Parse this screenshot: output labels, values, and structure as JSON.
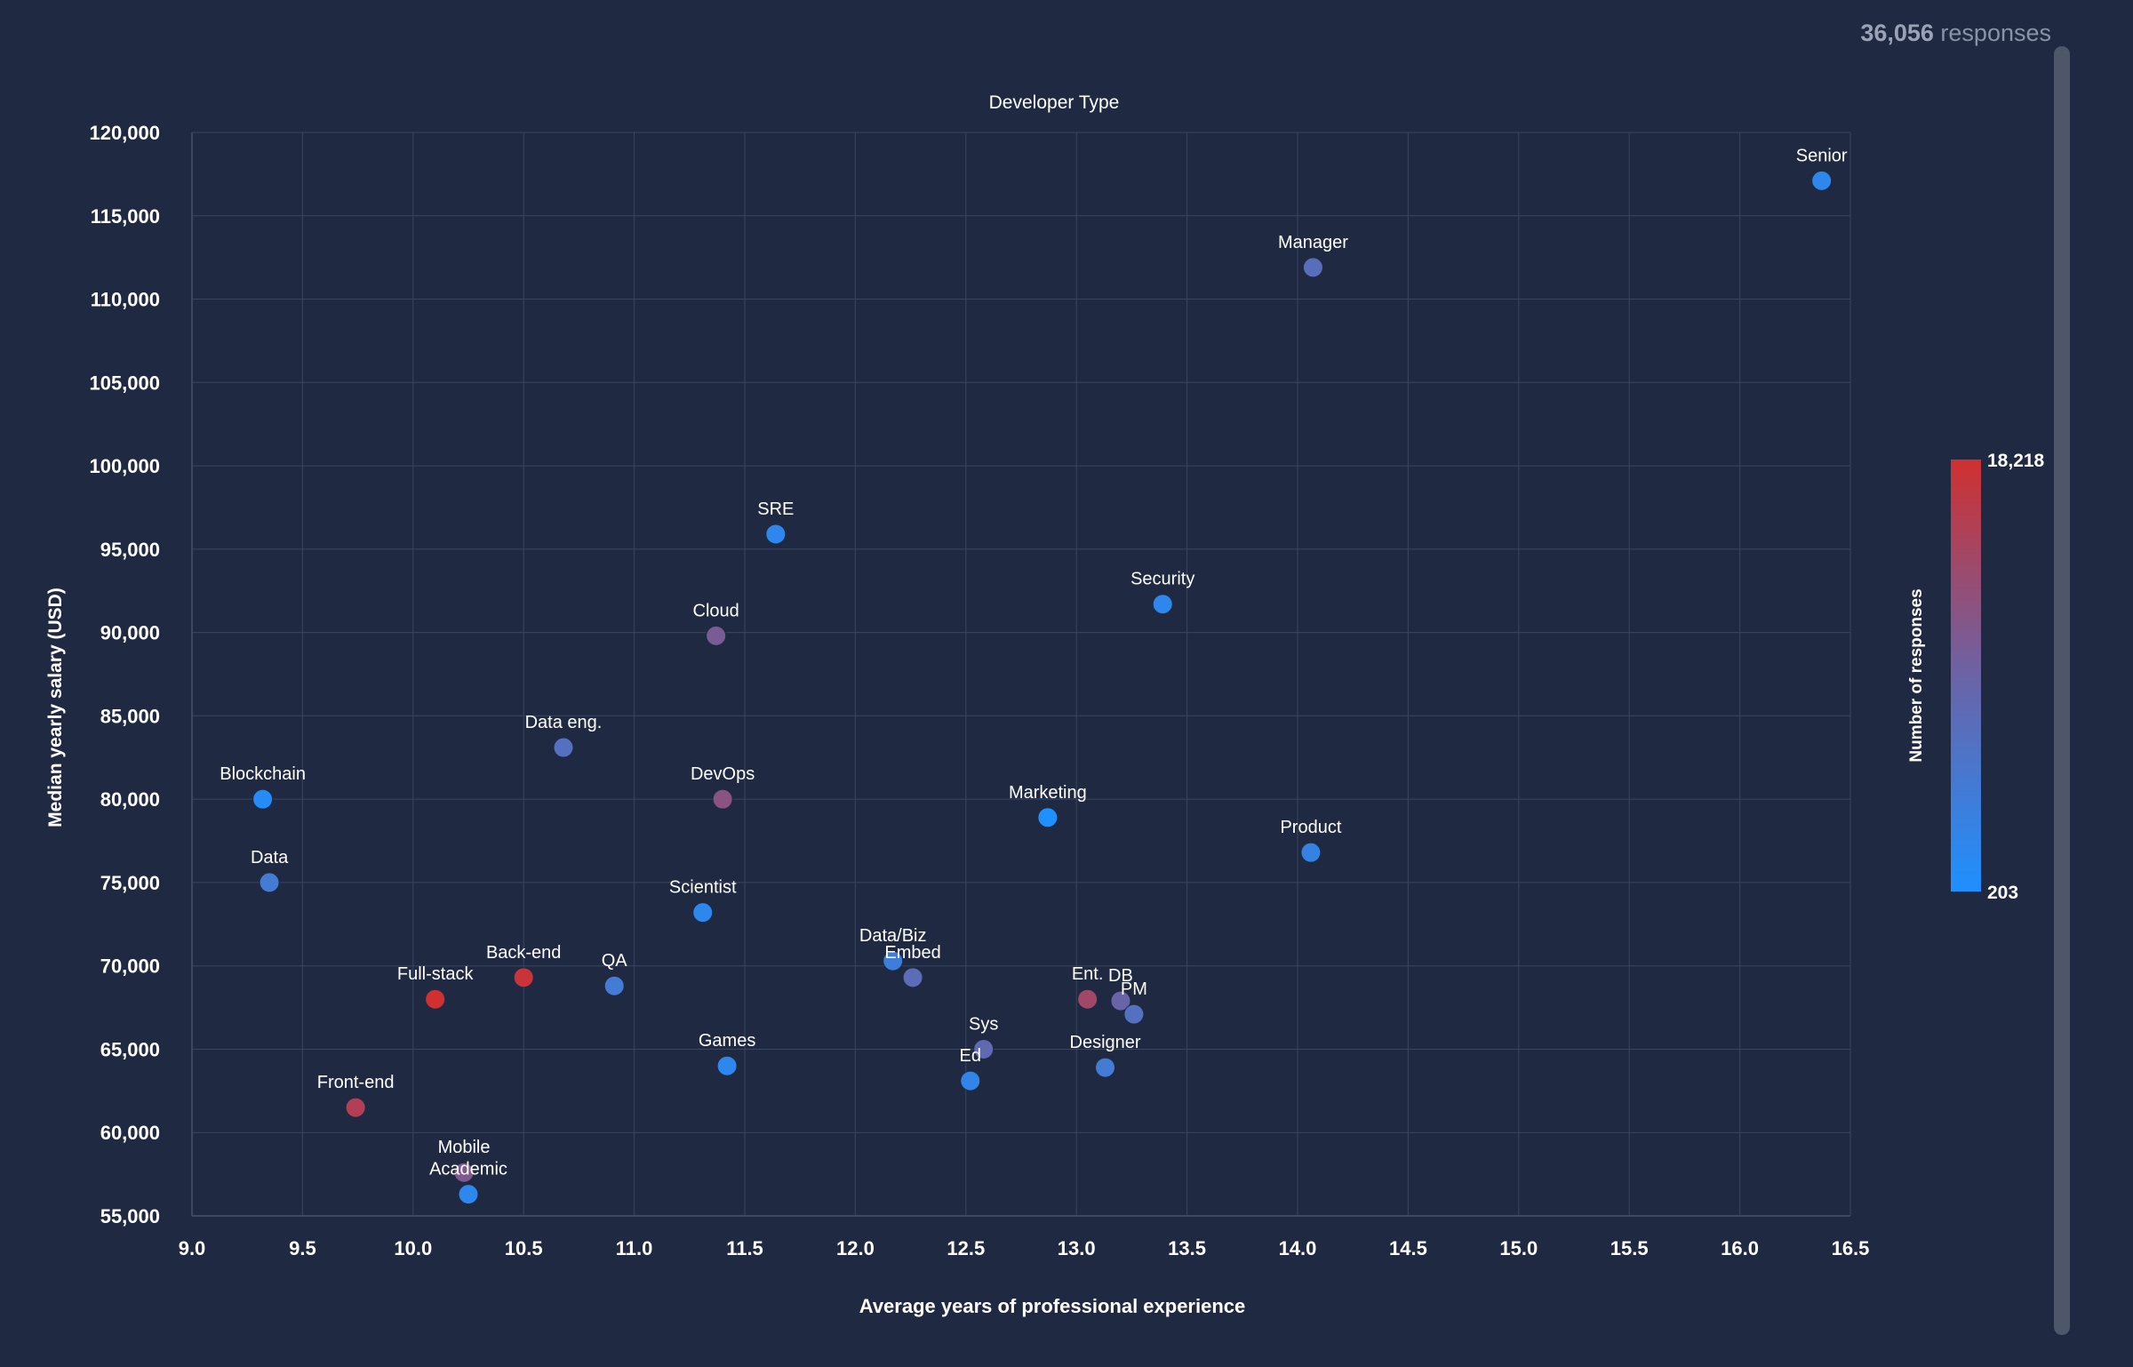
{
  "header": {
    "responses_count": "36,056",
    "responses_label": "responses"
  },
  "chart_data": {
    "type": "scatter",
    "title": "Developer Type",
    "xlabel": "Average years of professional experience",
    "ylabel": "Median yearly salary (USD)",
    "xlim": [
      9.0,
      16.5
    ],
    "ylim": [
      55000,
      120000
    ],
    "x_ticks": [
      "9.0",
      "9.5",
      "10.0",
      "10.5",
      "11.0",
      "11.5",
      "12.0",
      "12.5",
      "13.0",
      "13.5",
      "14.0",
      "14.5",
      "15.0",
      "15.5",
      "16.0",
      "16.5"
    ],
    "y_ticks": [
      "55,000",
      "60,000",
      "65,000",
      "70,000",
      "75,000",
      "80,000",
      "85,000",
      "90,000",
      "95,000",
      "100,000",
      "105,000",
      "110,000",
      "115,000",
      "120,000"
    ],
    "grid": true,
    "colorbar": {
      "label": "Number of responses",
      "min": 203,
      "max": 18218,
      "min_label": "203",
      "max_label": "18,218",
      "color_min": "#1e90ff",
      "color_max": "#d03030"
    },
    "points": [
      {
        "label": "Senior",
        "x": 16.37,
        "y": 117100,
        "responses": 2100
      },
      {
        "label": "Manager",
        "x": 14.07,
        "y": 111900,
        "responses": 7000
      },
      {
        "label": "SRE",
        "x": 11.64,
        "y": 95900,
        "responses": 2100
      },
      {
        "label": "Security",
        "x": 13.39,
        "y": 91700,
        "responses": 2100
      },
      {
        "label": "Cloud",
        "x": 11.37,
        "y": 89800,
        "responses": 10500
      },
      {
        "label": "Data eng.",
        "x": 10.68,
        "y": 83100,
        "responses": 6500
      },
      {
        "label": "Blockchain",
        "x": 9.32,
        "y": 80000,
        "responses": 1000
      },
      {
        "label": "DevOps",
        "x": 11.4,
        "y": 80000,
        "responses": 12000
      },
      {
        "label": "Marketing",
        "x": 12.87,
        "y": 78900,
        "responses": 203
      },
      {
        "label": "Product",
        "x": 14.06,
        "y": 76800,
        "responses": 3000
      },
      {
        "label": "Data",
        "x": 9.35,
        "y": 75000,
        "responses": 4500
      },
      {
        "label": "Scientist",
        "x": 11.31,
        "y": 73200,
        "responses": 2000
      },
      {
        "label": "Data/Biz",
        "x": 12.17,
        "y": 70300,
        "responses": 4000
      },
      {
        "label": "Back-end",
        "x": 10.5,
        "y": 69300,
        "responses": 17500
      },
      {
        "label": "Embed",
        "x": 12.26,
        "y": 69300,
        "responses": 7500
      },
      {
        "label": "QA",
        "x": 10.91,
        "y": 68800,
        "responses": 4500
      },
      {
        "label": "Full-stack",
        "x": 10.1,
        "y": 68000,
        "responses": 18218
      },
      {
        "label": "Ent.",
        "x": 13.05,
        "y": 68000,
        "responses": 14000
      },
      {
        "label": "DB",
        "x": 13.2,
        "y": 67900,
        "responses": 9000
      },
      {
        "label": "PM",
        "x": 13.26,
        "y": 67100,
        "responses": 6500
      },
      {
        "label": "Sys",
        "x": 12.58,
        "y": 65000,
        "responses": 8000
      },
      {
        "label": "Games",
        "x": 11.42,
        "y": 64000,
        "responses": 2000
      },
      {
        "label": "Designer",
        "x": 13.13,
        "y": 63900,
        "responses": 4500
      },
      {
        "label": "Ed",
        "x": 12.52,
        "y": 63100,
        "responses": 2500
      },
      {
        "label": "Front-end",
        "x": 9.74,
        "y": 61500,
        "responses": 15500
      },
      {
        "label": "Mobile",
        "x": 10.23,
        "y": 57600,
        "responses": 11000
      },
      {
        "label": "Academic",
        "x": 10.25,
        "y": 56300,
        "responses": 2100
      }
    ]
  }
}
